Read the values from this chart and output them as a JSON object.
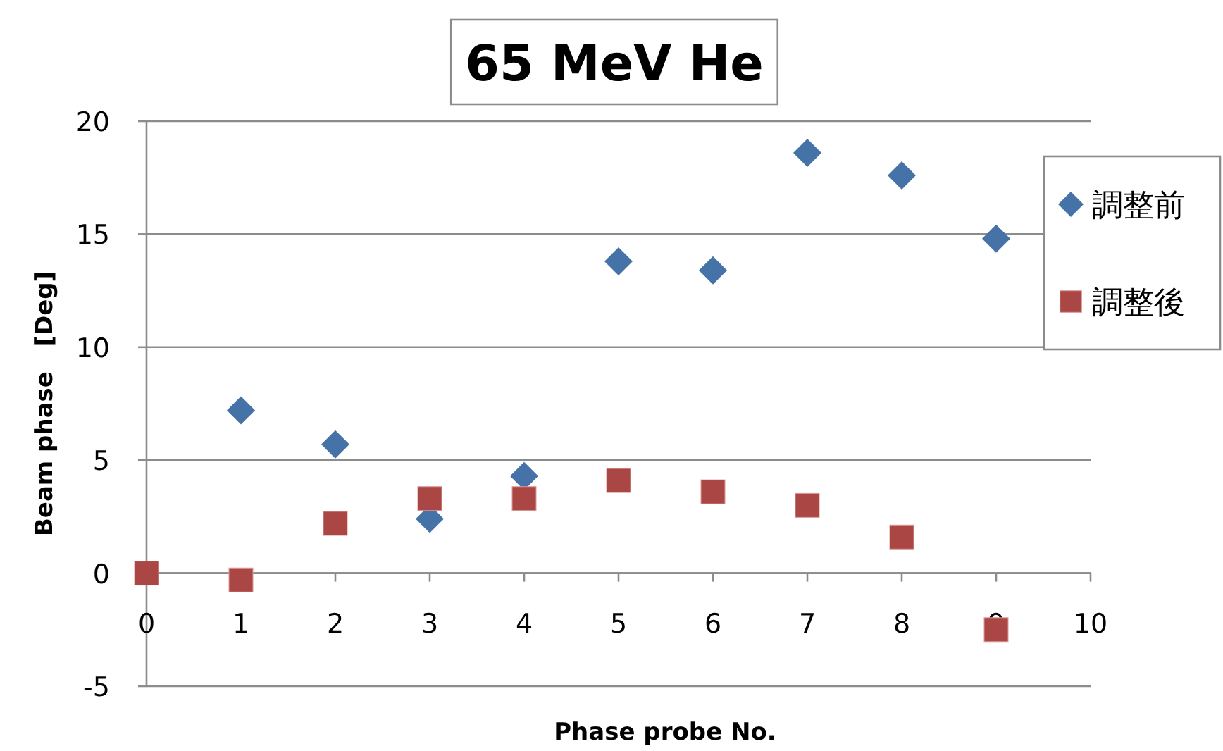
{
  "chart_data": {
    "type": "scatter",
    "title": "65 MeV He",
    "xlabel": "Phase probe No.",
    "ylabel": "Beam phase   [Deg]",
    "x": [
      0,
      1,
      2,
      3,
      4,
      5,
      6,
      7,
      8,
      9
    ],
    "series": [
      {
        "name": "調整前",
        "color": "#4572a7",
        "marker": "diamond",
        "values": [
          null,
          7.2,
          5.7,
          2.4,
          4.3,
          13.8,
          13.4,
          18.6,
          17.6,
          14.8
        ]
      },
      {
        "name": "調整後",
        "color": "#aa4643",
        "marker": "square",
        "values": [
          0,
          -0.3,
          2.2,
          3.3,
          3.3,
          4.1,
          3.6,
          3.0,
          1.6,
          -2.5
        ]
      }
    ],
    "xlim": [
      0,
      10
    ],
    "xticks": [
      0,
      1,
      2,
      3,
      4,
      5,
      6,
      7,
      8,
      9,
      10
    ],
    "ylim": [
      -5,
      20
    ],
    "yticks": [
      -5,
      0,
      5,
      10,
      15,
      20
    ],
    "grid": "y",
    "legend": "right"
  }
}
